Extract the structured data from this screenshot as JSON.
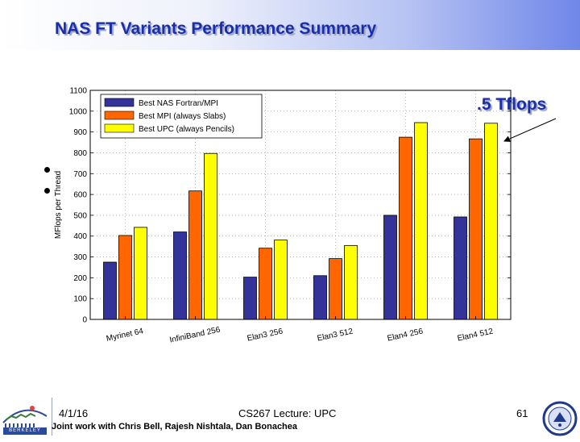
{
  "slide": {
    "title": "NAS FT Variants Performance Summary",
    "annotation": ".5 Tflops",
    "footer": {
      "date": "4/1/16",
      "course": "CS267 Lecture: UPC",
      "page": "61",
      "credit": "Joint work with Chris Bell, Rajesh Nishtala, Dan Bonachea",
      "logo_text": "BERKELEY LAB"
    }
  },
  "colors": {
    "title": "#1a2ea8",
    "series": [
      "#333399",
      "#ff6600",
      "#ffff00"
    ]
  },
  "chart_data": {
    "type": "bar",
    "categories": [
      "Myrinet 64",
      "InfiniBand 256",
      "Elan3 256",
      "Elan3 512",
      "Elan4 256",
      "Elan4 512"
    ],
    "series": [
      {
        "name": "Best NAS Fortran/MPI",
        "values": [
          275,
          420,
          203,
          210,
          500,
          492
        ]
      },
      {
        "name": "Best MPI (always Slabs)",
        "values": [
          403,
          617,
          342,
          292,
          875,
          867
        ]
      },
      {
        "name": "Best UPC (always Pencils)",
        "values": [
          442,
          797,
          381,
          355,
          945,
          942
        ]
      }
    ],
    "title": "",
    "xlabel": "",
    "ylabel": "MFlops per Thread",
    "ylim": [
      0,
      1100
    ],
    "yticks": [
      "0",
      "100",
      "200",
      "300",
      "400",
      "500",
      "600",
      "700",
      "800",
      "900",
      "1000",
      "1100"
    ],
    "grid": true,
    "legend_position": "top-left"
  }
}
